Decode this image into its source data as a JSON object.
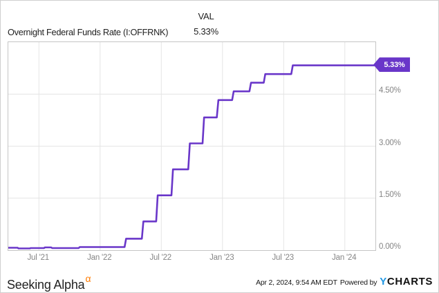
{
  "header": {
    "title": "Overnight Federal Funds Rate (I:OFFRNK)",
    "val_label": "VAL",
    "val_value": "5.33%"
  },
  "chart_data": {
    "type": "line",
    "title": "Overnight Federal Funds Rate (I:OFFRNK)",
    "x_unit": "months since 2021-04-01",
    "x_range_labels": [
      "Apr 2021",
      "Apr 2024"
    ],
    "xlim": [
      0,
      36
    ],
    "ylim": [
      0,
      6
    ],
    "grid": true,
    "legend_position": "none",
    "x_ticks": [
      {
        "x": 3,
        "label": "Jul '21"
      },
      {
        "x": 9,
        "label": "Jan '22"
      },
      {
        "x": 15,
        "label": "Jul '22"
      },
      {
        "x": 21,
        "label": "Jan '23"
      },
      {
        "x": 27,
        "label": "Jul '23"
      },
      {
        "x": 33,
        "label": "Jan '24"
      }
    ],
    "y_ticks": [
      {
        "value": 0,
        "label": "0.00%"
      },
      {
        "value": 1.5,
        "label": "1.50%"
      },
      {
        "value": 3,
        "label": "3.00%"
      },
      {
        "value": 4.5,
        "label": "4.50%"
      }
    ],
    "series": [
      {
        "name": "Overnight Federal Funds Rate (I:OFFRNK)",
        "unit": "%",
        "color": "#6936c9",
        "last_value": 5.33,
        "last_value_label": "5.33%",
        "points": [
          [
            0,
            0.07
          ],
          [
            0.9,
            0.07
          ],
          [
            1.0,
            0.05
          ],
          [
            2.1,
            0.05
          ],
          [
            2.2,
            0.06
          ],
          [
            3.5,
            0.06
          ],
          [
            3.6,
            0.08
          ],
          [
            4.2,
            0.08
          ],
          [
            4.3,
            0.06
          ],
          [
            6.9,
            0.06
          ],
          [
            7.0,
            0.09
          ],
          [
            11.4,
            0.09
          ],
          [
            11.55,
            0.33
          ],
          [
            13.1,
            0.33
          ],
          [
            13.25,
            0.83
          ],
          [
            14.5,
            0.83
          ],
          [
            14.65,
            1.58
          ],
          [
            16.0,
            1.58
          ],
          [
            16.15,
            2.33
          ],
          [
            17.65,
            2.33
          ],
          [
            17.8,
            3.08
          ],
          [
            19.05,
            3.08
          ],
          [
            19.2,
            3.83
          ],
          [
            20.45,
            3.83
          ],
          [
            20.6,
            4.33
          ],
          [
            21.95,
            4.33
          ],
          [
            22.1,
            4.58
          ],
          [
            23.65,
            4.58
          ],
          [
            23.8,
            4.83
          ],
          [
            25.05,
            4.83
          ],
          [
            25.2,
            5.08
          ],
          [
            27.75,
            5.08
          ],
          [
            27.9,
            5.33
          ],
          [
            36,
            5.33
          ]
        ]
      }
    ]
  },
  "footer": {
    "brand": "Seeking Alpha",
    "brand_symbol": "α",
    "timestamp": "Apr 2, 2024, 9:54 AM EDT",
    "powered_by": "Powered by",
    "ycharts_y": "Y",
    "ycharts_rest": "CHARTS"
  },
  "colors": {
    "line": "#6936c9",
    "badge_bg": "#6936c9",
    "badge_text": "#ffffff",
    "grid": "#e4e4e4",
    "plot_border": "#c5c5c5",
    "axis_label": "#858585",
    "title_text": "#1f1f1f",
    "alpha_orange": "#ff7b00",
    "ycharts_blue": "#2097e4"
  }
}
